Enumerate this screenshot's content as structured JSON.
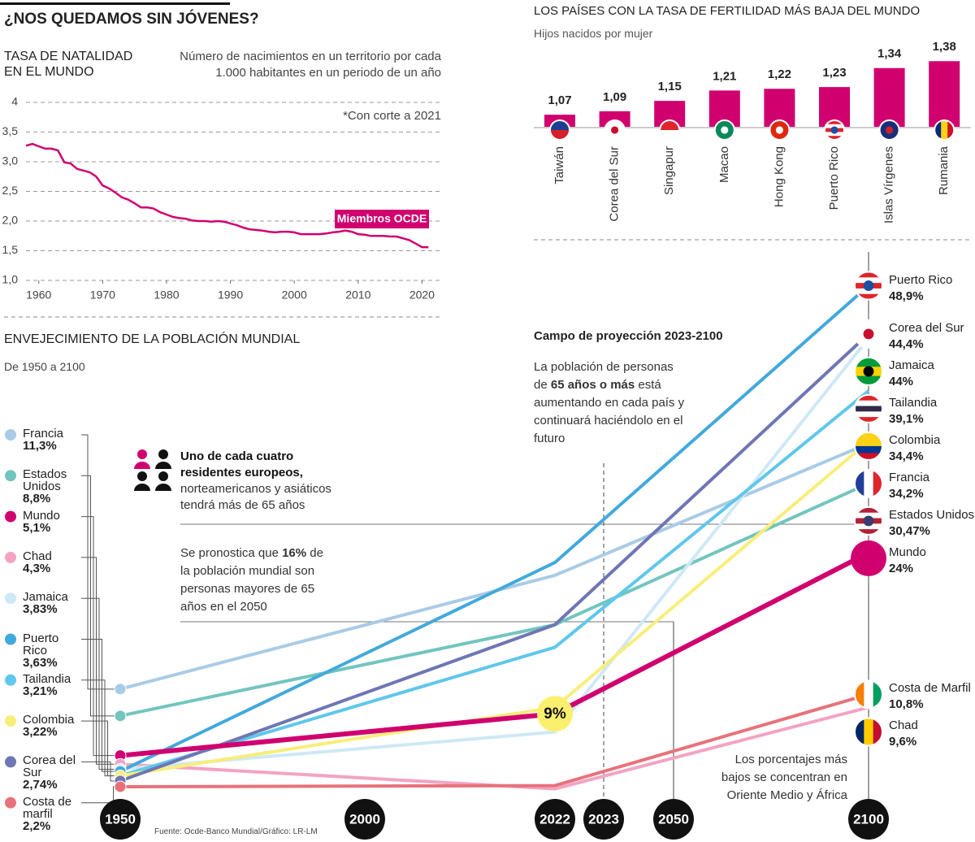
{
  "title": "¿NOS QUEDAMOS SIN JÓVENES?",
  "source": "Fuente: Ocde-Banco Mundial/Gráfico: LR-LM",
  "chart_data": [
    {
      "type": "line",
      "title": "TASA DE NATALIDAD EN EL MUNDO",
      "subtitle": "Número de nacimientos en un territorio por cada 1.000 habitantes en un periodo de un año",
      "note": "*Con corte a 2021",
      "x": [
        1958,
        1959,
        1960,
        1961,
        1962,
        1963,
        1964,
        1965,
        1966,
        1967,
        1968,
        1969,
        1970,
        1971,
        1972,
        1973,
        1974,
        1975,
        1976,
        1977,
        1978,
        1979,
        1980,
        1981,
        1982,
        1983,
        1984,
        1985,
        1986,
        1987,
        1988,
        1989,
        1990,
        1991,
        1992,
        1993,
        1994,
        1995,
        1996,
        1997,
        1998,
        1999,
        2000,
        2001,
        2002,
        2003,
        2004,
        2005,
        2006,
        2007,
        2008,
        2009,
        2010,
        2011,
        2012,
        2013,
        2014,
        2015,
        2016,
        2017,
        2018,
        2019,
        2020,
        2021
      ],
      "series": [
        {
          "name": "Miembros OCDE",
          "color": "#d0006f",
          "values": [
            3.27,
            3.3,
            3.26,
            3.22,
            3.22,
            3.19,
            2.99,
            2.97,
            2.88,
            2.85,
            2.82,
            2.75,
            2.6,
            2.55,
            2.48,
            2.4,
            2.36,
            2.3,
            2.23,
            2.23,
            2.21,
            2.15,
            2.11,
            2.07,
            2.05,
            2.04,
            2.01,
            2.0,
            2.0,
            1.99,
            2.0,
            1.99,
            1.96,
            1.93,
            1.89,
            1.86,
            1.85,
            1.84,
            1.82,
            1.81,
            1.82,
            1.82,
            1.81,
            1.78,
            1.78,
            1.78,
            1.78,
            1.79,
            1.81,
            1.82,
            1.84,
            1.82,
            1.78,
            1.77,
            1.75,
            1.75,
            1.75,
            1.74,
            1.74,
            1.71,
            1.68,
            1.62,
            1.56,
            1.56
          ]
        }
      ],
      "xlim": [
        1958,
        2023
      ],
      "xticks": [
        1960,
        1970,
        1980,
        1990,
        2000,
        2010,
        2020
      ],
      "ylim": [
        1,
        4
      ],
      "yticks": [
        {
          "value": 1,
          "label": "1,0"
        },
        {
          "value": 1.5,
          "label": "1,5"
        },
        {
          "value": 2,
          "label": "2,0"
        },
        {
          "value": 2.5,
          "label": "2,5"
        },
        {
          "value": 3,
          "label": "3,0"
        },
        {
          "value": 3.5,
          "label": "3,5"
        },
        4
      ],
      "grid": true
    },
    {
      "type": "bar",
      "title": "LOS PAÍSES CON LA TASA DE FERTILIDAD MÁS BAJA DEL MUNDO",
      "subtitle": "Hijos nacidos por mujer",
      "categories": [
        "Taiwán",
        "Corea del Sur",
        "Singapur",
        "Macao",
        "Hong Kong",
        "Puerto Rico",
        "Islas Vírgenes",
        "Rumania"
      ],
      "values": [
        1.07,
        1.09,
        1.15,
        1.21,
        1.22,
        1.23,
        1.34,
        1.38
      ],
      "value_labels": [
        "1,07",
        "1,09",
        "1,15",
        "1,21",
        "1,22",
        "1,23",
        "1,34",
        "1,38"
      ],
      "color": "#d0006f",
      "ylim": [
        1,
        1.4
      ]
    },
    {
      "type": "line",
      "title": "ENVEJECIMIENTO DE LA POBLACIÓN MUNDIAL",
      "subtitle": "De 1950 a 2100",
      "x": [
        1950,
        2022,
        2100
      ],
      "xlim": [
        1950,
        2100
      ],
      "xticks": [
        1950,
        2000,
        2022,
        2023,
        2050,
        2100
      ],
      "ylim": [
        0,
        50
      ],
      "series": [
        {
          "name": "Francia",
          "color": "#a9cbe6",
          "values": [
            11.3,
            21.9,
            34.2
          ],
          "value_labels": [
            "11,3%",
            null,
            "34,2%"
          ]
        },
        {
          "name": "Estados Unidos",
          "color": "#72c5bf",
          "values": [
            8.8,
            17.3,
            30.47
          ],
          "value_labels": [
            "8,8%",
            null,
            "30,47%"
          ]
        },
        {
          "name": "Mundo",
          "color": "#d0006f",
          "values": [
            5.1,
            9,
            24
          ],
          "value_labels": [
            "5,1%",
            "9%",
            "24%"
          ]
        },
        {
          "name": "Chad",
          "color": "#f3a3c3",
          "values": [
            4.3,
            2,
            9.6
          ],
          "value_labels": [
            "4,3%",
            null,
            "9,6%"
          ]
        },
        {
          "name": "Jamaica",
          "color": "#cfe8f6",
          "values": [
            3.83,
            7.3,
            44
          ],
          "value_labels": [
            "3,83%",
            null,
            "44%"
          ]
        },
        {
          "name": "Puerto Rico",
          "color": "#41a9dc",
          "values": [
            3.63,
            23.1,
            48.9
          ],
          "value_labels": [
            "3,63%",
            null,
            "48,9%"
          ]
        },
        {
          "name": "Tailandia",
          "color": "#5fc7ec",
          "values": [
            3.21,
            15.2,
            39.1
          ],
          "value_labels": [
            "3,21%",
            null,
            "39,1%"
          ]
        },
        {
          "name": "Colombia",
          "color": "#f8ee7a",
          "values": [
            3.22,
            9.6,
            34.4
          ],
          "value_labels": [
            "3,22%",
            null,
            "34,4%"
          ]
        },
        {
          "name": "Corea del Sur",
          "color": "#6e76b4",
          "values": [
            2.74,
            17.3,
            44.4
          ],
          "value_labels": [
            "2,74%",
            null,
            "44,4%"
          ]
        },
        {
          "name": "Costa de Marfil",
          "start_name": "Costa de marfil",
          "color": "#e8727a",
          "values": [
            2.2,
            2.3,
            10.8
          ],
          "value_labels": [
            "2,2%",
            null,
            "10,8%"
          ]
        }
      ],
      "annotations": {
        "projection_title": "Campo de proyección 2023-2100",
        "projection_text": [
          "La población de personas de",
          "65 años o más",
          "está aumentando en cada país y continuará haciéndolo en el futuro"
        ],
        "europe_text": [
          "Uno de cada cuatro residentes europeos,",
          "norteamericanos y asiáticos tendrá más de 65 años"
        ],
        "forecast_text": [
          "Se pronostica que",
          "16%",
          "de la población mundial son personas mayores de 65 años en el 2050"
        ],
        "low_text": "Los porcentajes más bajos se concentran en Oriente Medio y África"
      }
    }
  ]
}
